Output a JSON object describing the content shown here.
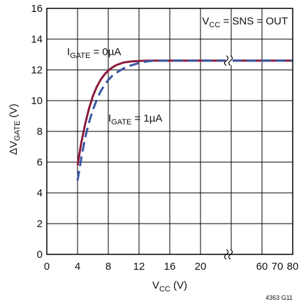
{
  "chart_data": {
    "type": "line",
    "title": "",
    "xlabel": {
      "main": "V",
      "sub": "CC",
      "unit": " (V)"
    },
    "ylabel": {
      "main": "ΔV",
      "sub": "GATE",
      "unit": " (V)"
    },
    "ylim": [
      0,
      16
    ],
    "yticks": [
      "0",
      "2",
      "4",
      "6",
      "8",
      "10",
      "12",
      "14",
      "16"
    ],
    "xaxis_segments": [
      {
        "xlim": [
          0,
          24
        ],
        "ticks": [
          0,
          4,
          8,
          12,
          16,
          20
        ]
      },
      {
        "xlim": [
          40,
          80
        ],
        "ticks": [
          60,
          70,
          80
        ]
      }
    ],
    "xtick_labels": [
      "0",
      "4",
      "8",
      "12",
      "16",
      "20",
      "60",
      "70",
      "80"
    ],
    "axis_break": "between 20 and 60 V",
    "grid": true,
    "legend": "none",
    "annotation": {
      "main1": "V",
      "sub1": "CC",
      "rest": " = SNS = OUT"
    },
    "figure_code": "4363 G11",
    "series": [
      {
        "name": "I_GATE = 0µA",
        "label": {
          "main": "I",
          "sub": "GATE",
          "rest": " = 0µA"
        },
        "color": "#8b1a3a",
        "style": "solid",
        "x": [
          4,
          4.5,
          5,
          5.5,
          6,
          6.5,
          7,
          7.5,
          8,
          8.5,
          9,
          10,
          11,
          12,
          13,
          16,
          20,
          60,
          70,
          80
        ],
        "y": [
          5.8,
          7.3,
          8.5,
          9.5,
          10.3,
          10.9,
          11.35,
          11.7,
          11.95,
          12.15,
          12.3,
          12.48,
          12.55,
          12.58,
          12.6,
          12.6,
          12.6,
          12.6,
          12.6,
          12.6
        ]
      },
      {
        "name": "I_GATE = 1µA",
        "label": {
          "main": "I",
          "sub": "GATE",
          "rest": " = 1µA"
        },
        "color": "#3a57a4",
        "style": "dashed",
        "x": [
          4,
          4.5,
          5,
          5.5,
          6,
          6.5,
          7,
          7.5,
          8,
          8.5,
          9,
          10,
          11,
          12,
          13,
          14,
          16,
          20,
          60,
          70,
          80
        ],
        "y": [
          4.8,
          6.3,
          7.6,
          8.6,
          9.4,
          10.05,
          10.6,
          11.0,
          11.35,
          11.6,
          11.8,
          12.1,
          12.3,
          12.45,
          12.55,
          12.6,
          12.6,
          12.6,
          12.6,
          12.6,
          12.6
        ]
      }
    ]
  }
}
